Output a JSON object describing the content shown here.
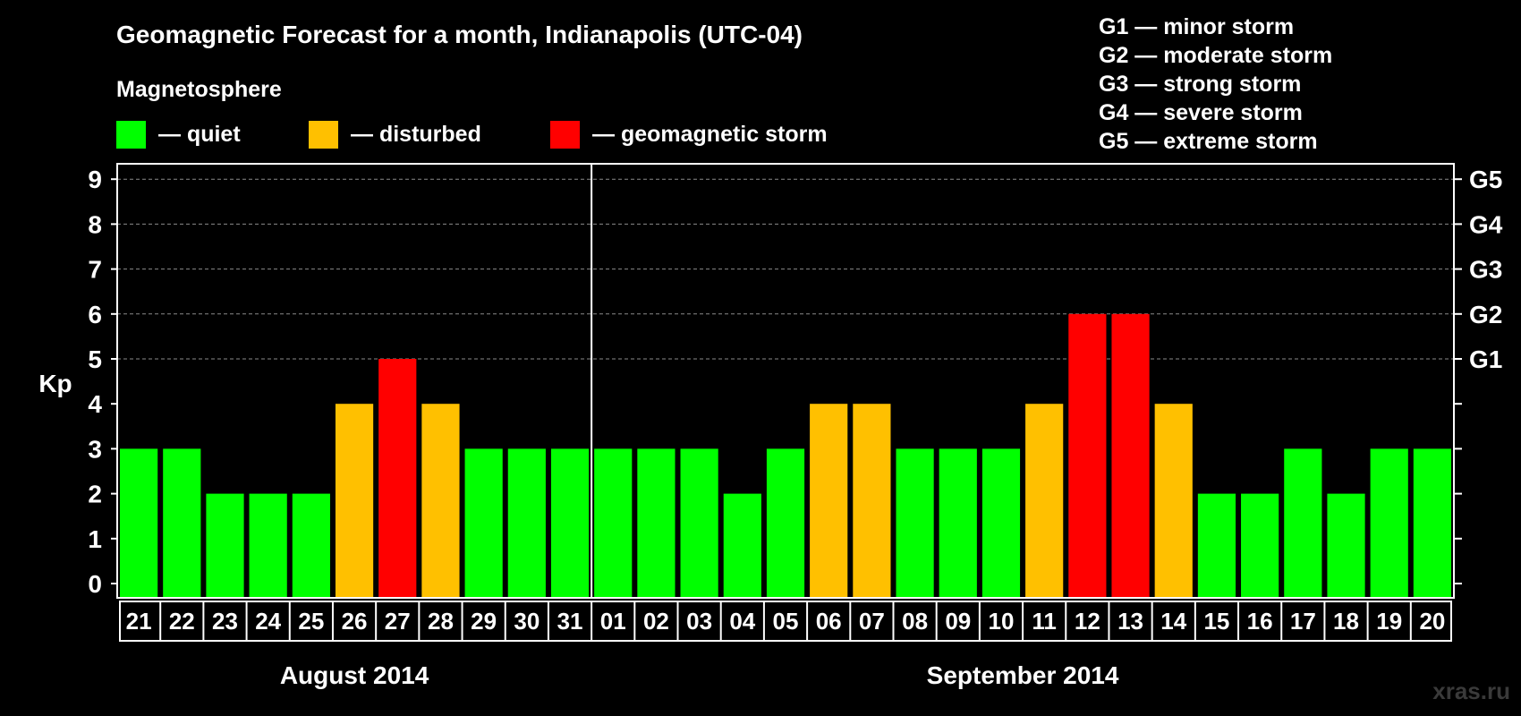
{
  "chart_data": {
    "type": "bar",
    "title": "Geomagnetic Forecast for a month, Indianapolis (UTC-04)",
    "legend_heading": "Magnetosphere",
    "legend": [
      {
        "label": "— quiet",
        "color": "#00ff00"
      },
      {
        "label": "— disturbed",
        "color": "#ffc000"
      },
      {
        "label": "— geomagnetic storm",
        "color": "#ff0000"
      }
    ],
    "g_scale": [
      "G1 — minor storm",
      "G2 — moderate storm",
      "G3 — strong storm",
      "G4 — severe storm",
      "G5 — extreme storm"
    ],
    "ylabel": "Kp",
    "ylim": [
      0,
      9
    ],
    "y_ticks": [
      "0",
      "1",
      "2",
      "3",
      "4",
      "5",
      "6",
      "7",
      "8",
      "9"
    ],
    "right_labels": [
      {
        "kp": 5,
        "label": "G1"
      },
      {
        "kp": 6,
        "label": "G2"
      },
      {
        "kp": 7,
        "label": "G3"
      },
      {
        "kp": 8,
        "label": "G4"
      },
      {
        "kp": 9,
        "label": "G5"
      }
    ],
    "grid_dashed_from": 5,
    "categories": [
      "21",
      "22",
      "23",
      "24",
      "25",
      "26",
      "27",
      "28",
      "29",
      "30",
      "31",
      "01",
      "02",
      "03",
      "04",
      "05",
      "06",
      "07",
      "08",
      "09",
      "10",
      "11",
      "12",
      "13",
      "14",
      "15",
      "16",
      "17",
      "18",
      "19",
      "20"
    ],
    "values": [
      3,
      3,
      2,
      2,
      2,
      4,
      5,
      4,
      3,
      3,
      3,
      3,
      3,
      3,
      2,
      3,
      4,
      4,
      3,
      3,
      3,
      4,
      6,
      6,
      4,
      2,
      2,
      3,
      2,
      3,
      3
    ],
    "months": [
      {
        "label": "August 2014",
        "start": 0,
        "count": 11
      },
      {
        "label": "September 2014",
        "start": 11,
        "count": 20
      }
    ],
    "thresholds": {
      "quiet_max": 3,
      "disturbed_max": 4
    }
  },
  "watermark": "xras.ru"
}
